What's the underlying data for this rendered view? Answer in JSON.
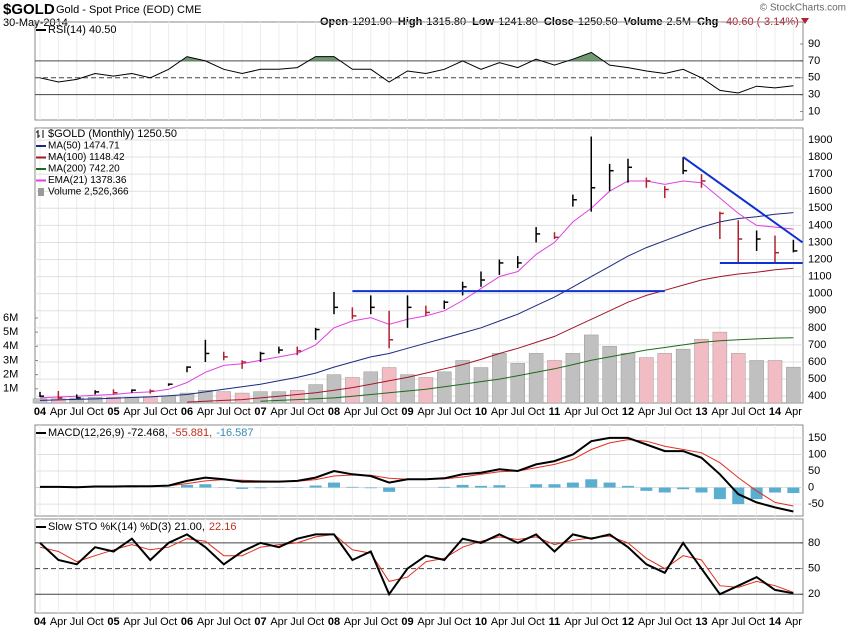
{
  "header": {
    "symbol": "$GOLD",
    "name": "Gold - Spot Price (EOD) CME",
    "date": "30-May-2014",
    "copyright": "© StockCharts.com",
    "stats": [
      {
        "label": "Open",
        "value": "1291.90"
      },
      {
        "label": "High",
        "value": "1315.80"
      },
      {
        "label": "Low",
        "value": "1241.80"
      },
      {
        "label": "Close",
        "value": "1250.50"
      },
      {
        "label": "Volume",
        "value": "2.5M"
      },
      {
        "label": "Chg",
        "value": "-40.60 (-3.14%)"
      }
    ]
  },
  "chart_data": [
    {
      "type": "line",
      "label_parts": [
        "RSI(14) 40.50"
      ],
      "ylim": [
        0,
        116
      ],
      "yticks": [
        10,
        30,
        50,
        70,
        90
      ],
      "levels": [
        {
          "value": 70,
          "dash": false
        },
        {
          "value": 50,
          "dash": true
        },
        {
          "value": 30,
          "dash": false
        }
      ],
      "fill_above": {
        "value": 70,
        "color": "#6f9a6f"
      },
      "series": [
        {
          "color": "#000000",
          "values": [
            50,
            45,
            48,
            55,
            52,
            55,
            50,
            60,
            75,
            70,
            60,
            55,
            60,
            60,
            62,
            75,
            75,
            60,
            60,
            45,
            58,
            55,
            60,
            70,
            60,
            68,
            62,
            72,
            65,
            72,
            80,
            65,
            62,
            58,
            55,
            60,
            50,
            35,
            32,
            40,
            38,
            40.5
          ]
        }
      ]
    },
    {
      "type": "ohlc",
      "categories": [
        "04",
        "Apr",
        "Jul",
        "Oct",
        "05",
        "Apr",
        "Jul",
        "Oct",
        "06",
        "Apr",
        "Jul",
        "Oct",
        "07",
        "Apr",
        "Jul",
        "Oct",
        "08",
        "Apr",
        "Jul",
        "Oct",
        "09",
        "Apr",
        "Jul",
        "Oct",
        "10",
        "Apr",
        "Jul",
        "Oct",
        "11",
        "Apr",
        "Jul",
        "Oct",
        "12",
        "Apr",
        "Jul",
        "Oct",
        "13",
        "Apr",
        "Jul",
        "Oct",
        "14",
        "Apr"
      ],
      "ylim": [
        360,
        1970
      ],
      "yticks": [
        400,
        500,
        600,
        700,
        800,
        900,
        1000,
        1100,
        1200,
        1300,
        1400,
        1500,
        1600,
        1700,
        1800,
        1900
      ],
      "grid": true,
      "y2lim": [
        0,
        19400000
      ],
      "y2ticks": [
        {
          "value": 1000000,
          "label": "1M"
        },
        {
          "value": 2000000,
          "label": "2M"
        },
        {
          "value": 3000000,
          "label": "3M"
        },
        {
          "value": 4000000,
          "label": "4M"
        },
        {
          "value": 5000000,
          "label": "5M"
        },
        {
          "value": 6000000,
          "label": "6M"
        }
      ],
      "ohlc": {
        "name": "$GOLD (Monthly) 1250.50",
        "up_color": "#000000",
        "down_color": "#b02030",
        "high": [
          425,
          430,
          410,
          435,
          440,
          440,
          440,
          475,
          575,
          730,
          660,
          610,
          660,
          690,
          690,
          800,
          1010,
          920,
          990,
          900,
          990,
          930,
          960,
          1070,
          1130,
          1200,
          1220,
          1390,
          1360,
          1580,
          1920,
          1760,
          1790,
          1680,
          1630,
          1800,
          1700,
          1480,
          1430,
          1370,
          1340,
          1315.8
        ],
        "low": [
          395,
          375,
          385,
          410,
          410,
          420,
          415,
          460,
          540,
          600,
          610,
          560,
          600,
          650,
          640,
          730,
          880,
          850,
          880,
          680,
          800,
          870,
          910,
          990,
          1040,
          1110,
          1150,
          1300,
          1320,
          1510,
          1480,
          1600,
          1650,
          1620,
          1560,
          1700,
          1620,
          1320,
          1180,
          1250,
          1180,
          1241.8
        ],
        "close": [
          400,
          390,
          390,
          425,
          420,
          435,
          430,
          470,
          570,
          650,
          630,
          600,
          650,
          670,
          665,
          790,
          920,
          870,
          920,
          730,
          920,
          890,
          950,
          1040,
          1080,
          1180,
          1180,
          1350,
          1330,
          1550,
          1620,
          1720,
          1740,
          1660,
          1610,
          1720,
          1660,
          1470,
          1320,
          1320,
          1240,
          1250.5
        ]
      },
      "series": [
        {
          "name": "MA(50) 1474.71",
          "color": "#1a2a80",
          "values": [
            375,
            378,
            381,
            384,
            388,
            392,
            396,
            402,
            410,
            425,
            440,
            455,
            470,
            490,
            510,
            535,
            570,
            600,
            630,
            650,
            680,
            710,
            740,
            770,
            800,
            840,
            880,
            930,
            980,
            1040,
            1100,
            1160,
            1220,
            1270,
            1310,
            1350,
            1390,
            1420,
            1440,
            1450,
            1465,
            1474.71
          ]
        },
        {
          "name": "MA(100) 1148.42",
          "color": "#a01828",
          "values": [
            null,
            null,
            null,
            null,
            null,
            null,
            null,
            null,
            365,
            370,
            375,
            380,
            390,
            400,
            410,
            420,
            435,
            450,
            470,
            490,
            510,
            535,
            560,
            585,
            615,
            650,
            680,
            715,
            750,
            800,
            850,
            900,
            950,
            990,
            1020,
            1050,
            1080,
            1100,
            1115,
            1125,
            1140,
            1148.42
          ]
        },
        {
          "name": "MA(200) 742.20",
          "color": "#1e6a1e",
          "values": [
            null,
            null,
            null,
            null,
            null,
            null,
            null,
            null,
            null,
            null,
            null,
            null,
            370,
            375,
            380,
            385,
            390,
            400,
            410,
            420,
            430,
            440,
            455,
            470,
            485,
            500,
            520,
            540,
            560,
            585,
            610,
            630,
            650,
            670,
            685,
            700,
            715,
            725,
            730,
            735,
            740,
            742.2
          ]
        },
        {
          "name": "EMA(21) 1378.36",
          "color": "#e040e0",
          "values": [
            390,
            395,
            400,
            405,
            410,
            420,
            425,
            440,
            480,
            540,
            580,
            590,
            610,
            630,
            650,
            700,
            800,
            840,
            860,
            820,
            850,
            870,
            900,
            960,
            1030,
            1100,
            1130,
            1230,
            1300,
            1420,
            1500,
            1600,
            1660,
            1660,
            1640,
            1660,
            1650,
            1560,
            1470,
            1400,
            1390,
            1378.36
          ]
        },
        {
          "name": "Volume 2,526,366",
          "axis": "y2",
          "style": "bar",
          "color": "#9a9a9a",
          "up_color": "#c0c0c0",
          "down_color": "#f2bcc4",
          "values": [
            300000,
            300000,
            350000,
            400000,
            400000,
            400000,
            450000,
            500000,
            700000,
            900000,
            800000,
            700000,
            800000,
            800000,
            900000,
            1300000,
            2000000,
            1800000,
            2200000,
            2500000,
            2000000,
            1800000,
            2200000,
            3000000,
            2500000,
            3500000,
            2800000,
            3500000,
            3000000,
            3500000,
            4800000,
            4000000,
            3500000,
            3200000,
            3500000,
            3800000,
            4500000,
            5000000,
            3500000,
            3000000,
            3000000,
            2526366
          ]
        }
      ],
      "trendlines": [
        {
          "color": "#1030d0",
          "x": [
            17,
            34
          ],
          "values": [
            1015,
            1015
          ]
        },
        {
          "color": "#1030d0",
          "x": [
            37,
            41.5
          ],
          "values": [
            1180,
            1180
          ]
        },
        {
          "color": "#1030d0",
          "x": [
            35,
            41.5
          ],
          "values": [
            1800,
            1300
          ]
        }
      ]
    },
    {
      "type": "line",
      "label_parts": [
        "MACD(12,26,9) -72.468,",
        "-55.881,",
        "-16.587"
      ],
      "label_colors": [
        "#000000",
        "#c03020",
        "#3a8ab8"
      ],
      "ylim": [
        -86,
        189
      ],
      "yticks": [
        -50,
        0,
        50,
        100,
        150
      ],
      "grid": true,
      "series": [
        {
          "style": "bar",
          "color": "#5aaed0",
          "values": [
            1,
            0,
            -1,
            1,
            0,
            1,
            0,
            1,
            8,
            10,
            1,
            -4,
            -2,
            -1,
            1,
            6,
            15,
            2,
            -2,
            -13,
            0,
            0,
            2,
            8,
            5,
            7,
            0,
            10,
            10,
            15,
            25,
            15,
            5,
            -10,
            -15,
            -5,
            -15,
            -35,
            -50,
            -35,
            -15,
            -16.587
          ]
        },
        {
          "color": "#e03020",
          "values": [
            1,
            2,
            2,
            2,
            3,
            3,
            4,
            5,
            12,
            20,
            24,
            22,
            20,
            19,
            19,
            24,
            35,
            38,
            37,
            28,
            25,
            25,
            26,
            32,
            40,
            48,
            50,
            60,
            70,
            85,
            115,
            135,
            145,
            140,
            125,
            115,
            105,
            75,
            30,
            -10,
            -45,
            -55.881
          ]
        },
        {
          "color": "#000000",
          "width": 2,
          "values": [
            2,
            2,
            1,
            3,
            3,
            4,
            4,
            6,
            20,
            30,
            25,
            18,
            18,
            18,
            20,
            30,
            50,
            40,
            35,
            15,
            25,
            25,
            28,
            40,
            45,
            55,
            50,
            70,
            80,
            100,
            140,
            150,
            150,
            130,
            110,
            110,
            90,
            40,
            -20,
            -45,
            -60,
            -72.468
          ]
        }
      ]
    },
    {
      "type": "line",
      "categories": [
        "04",
        "Apr",
        "Jul",
        "Oct",
        "05",
        "Apr",
        "Jul",
        "Oct",
        "06",
        "Apr",
        "Jul",
        "Oct",
        "07",
        "Apr",
        "Jul",
        "Oct",
        "08",
        "Apr",
        "Jul",
        "Oct",
        "09",
        "Apr",
        "Jul",
        "Oct",
        "10",
        "Apr",
        "Jul",
        "Oct",
        "11",
        "Apr",
        "Jul",
        "Oct",
        "12",
        "Apr",
        "Jul",
        "Oct",
        "13",
        "Apr",
        "Jul",
        "Oct",
        "14",
        "Apr"
      ],
      "label_parts": [
        "Slow STO %K(14) %D(3) 21.00,",
        "22.16"
      ],
      "label_colors": [
        "#000000",
        "#c03020"
      ],
      "ylim": [
        -2,
        108
      ],
      "yticks": [
        20,
        50,
        80
      ],
      "levels": [
        {
          "value": 80,
          "dash": false
        },
        {
          "value": 50,
          "dash": true
        },
        {
          "value": 20,
          "dash": false
        }
      ],
      "series": [
        {
          "color": "#e03020",
          "values": [
            75,
            70,
            58,
            65,
            72,
            78,
            72,
            75,
            85,
            82,
            65,
            65,
            75,
            78,
            80,
            87,
            90,
            72,
            68,
            35,
            40,
            58,
            62,
            75,
            82,
            87,
            84,
            87,
            78,
            83,
            86,
            88,
            80,
            62,
            50,
            65,
            60,
            30,
            28,
            35,
            30,
            22.16
          ]
        },
        {
          "color": "#000000",
          "width": 2,
          "values": [
            80,
            60,
            55,
            75,
            70,
            85,
            60,
            80,
            90,
            75,
            55,
            70,
            80,
            75,
            85,
            90,
            90,
            60,
            70,
            20,
            50,
            65,
            60,
            85,
            80,
            90,
            80,
            90,
            70,
            90,
            85,
            90,
            75,
            55,
            45,
            80,
            50,
            20,
            30,
            40,
            25,
            21
          ]
        }
      ]
    }
  ]
}
